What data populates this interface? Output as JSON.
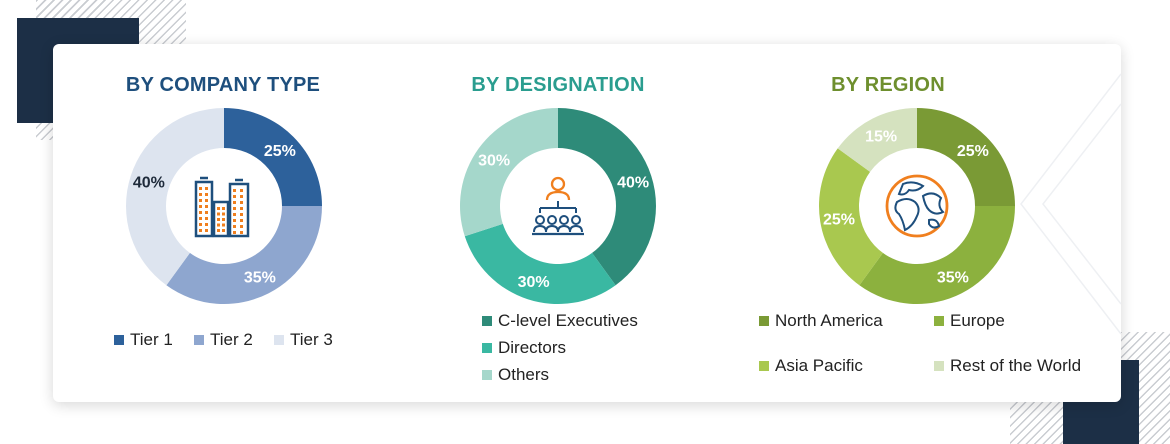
{
  "colors": {
    "company_title": "#1e4f7d",
    "designation_title": "#2a9d8f",
    "region_title": "#6e8f2e",
    "icon_navy": "#1e4f7d",
    "icon_orange": "#f07f1e"
  },
  "chart_data": [
    {
      "type": "pie",
      "title": "BY COMPANY TYPE",
      "categories": [
        "Tier 1",
        "Tier 2",
        "Tier 3"
      ],
      "values": [
        25,
        35,
        40
      ],
      "labels": [
        "25%",
        "35%",
        "40%"
      ],
      "colors": [
        "#2d619b",
        "#8ea6cf",
        "#dde4ef"
      ],
      "label_colors": [
        "#ffffff",
        "#ffffff",
        "#1e2a3a"
      ],
      "center_icon": "buildings-icon",
      "legend": "bottom"
    },
    {
      "type": "pie",
      "title": "BY DESIGNATION",
      "categories": [
        "C-level Executives",
        "Directors",
        "Others"
      ],
      "values": [
        40,
        30,
        30
      ],
      "labels": [
        "40%",
        "30%",
        "30%"
      ],
      "colors": [
        "#2e8b79",
        "#3ab8a2",
        "#a5d7cb"
      ],
      "label_colors": [
        "#ffffff",
        "#ffffff",
        "#ffffff"
      ],
      "center_icon": "org-chart-icon",
      "legend": "bottom"
    },
    {
      "type": "pie",
      "title": "BY REGION",
      "categories": [
        "North America",
        "Europe",
        "Asia Pacific",
        "Rest of the World"
      ],
      "values": [
        25,
        35,
        25,
        15
      ],
      "labels": [
        "25%",
        "35%",
        "25%",
        "15%"
      ],
      "colors": [
        "#7a9a35",
        "#8cb13e",
        "#a9c84f",
        "#d5e2bf"
      ],
      "label_colors": [
        "#ffffff",
        "#ffffff",
        "#ffffff",
        "#ffffff"
      ],
      "center_icon": "globe-icon",
      "legend": "bottom"
    }
  ]
}
